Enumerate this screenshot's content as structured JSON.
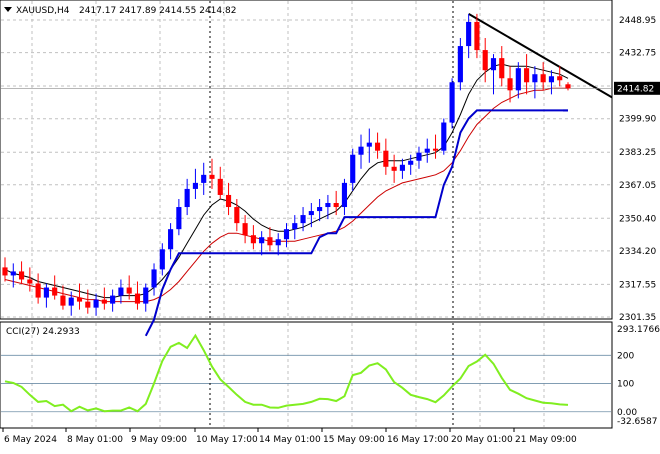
{
  "header": {
    "symbol_line": "XAUUSD,H4",
    "ohlc": "2417.17 2417.89 2414.55 2414.82"
  },
  "current_price": "2414.82",
  "colors": {
    "bull": "#0000ff",
    "bear": "#ff0000",
    "ma_fast": "#000000",
    "ma_slow": "#cc0000",
    "atr_stop": "#0000cc",
    "cci": "#80ee20",
    "grid": "#c0c0c0"
  },
  "price_axis": {
    "labels": [
      "2448.95",
      "2432.75",
      "2416.15",
      "2399.90",
      "2383.25",
      "2367.05",
      "2350.40",
      "2334.20",
      "2317.55",
      "2301.35"
    ],
    "ylim": [
      2301.35,
      2455.0
    ]
  },
  "indicator": {
    "label": "CCI(27) 24.2933",
    "axis_labels": [
      "293.1766",
      "200",
      "100",
      "0.00",
      "-32.6587"
    ],
    "levels": [
      200,
      100,
      0
    ],
    "ylim": [
      -32.6587,
      293.1766
    ]
  },
  "time_axis": {
    "labels": [
      "6 May 2024",
      "8 May 01:00",
      "9 May 09:00",
      "10 May 17:00",
      "14 May 01:00",
      "15 May 09:00",
      "16 May 17:00",
      "20 May 01:00",
      "21 May 09:00"
    ]
  },
  "chart_data": {
    "type": "candlestick",
    "candles": [
      [
        2326,
        2331,
        2319,
        2322
      ],
      [
        2322,
        2328,
        2316,
        2324
      ],
      [
        2324,
        2329,
        2318,
        2320
      ],
      [
        2320,
        2326,
        2314,
        2318
      ],
      [
        2318,
        2323,
        2308,
        2311
      ],
      [
        2311,
        2318,
        2306,
        2316
      ],
      [
        2316,
        2322,
        2310,
        2312
      ],
      [
        2312,
        2317,
        2305,
        2307
      ],
      [
        2307,
        2314,
        2302,
        2311
      ],
      [
        2311,
        2318,
        2305,
        2309
      ],
      [
        2309,
        2315,
        2303,
        2306
      ],
      [
        2306,
        2313,
        2302,
        2310
      ],
      [
        2310,
        2316,
        2305,
        2308
      ],
      [
        2308,
        2315,
        2304,
        2312
      ],
      [
        2312,
        2320,
        2308,
        2316
      ],
      [
        2316,
        2322,
        2310,
        2313
      ],
      [
        2313,
        2319,
        2305,
        2308
      ],
      [
        2308,
        2318,
        2304,
        2316
      ],
      [
        2316,
        2328,
        2312,
        2325
      ],
      [
        2325,
        2338,
        2322,
        2335
      ],
      [
        2335,
        2348,
        2330,
        2345
      ],
      [
        2345,
        2360,
        2342,
        2356
      ],
      [
        2356,
        2370,
        2352,
        2365
      ],
      [
        2365,
        2375,
        2360,
        2368
      ],
      [
        2368,
        2378,
        2362,
        2372
      ],
      [
        2372,
        2380,
        2365,
        2370
      ],
      [
        2370,
        2376,
        2360,
        2362
      ],
      [
        2362,
        2368,
        2352,
        2356
      ],
      [
        2356,
        2360,
        2344,
        2348
      ],
      [
        2348,
        2352,
        2338,
        2342
      ],
      [
        2342,
        2347,
        2335,
        2338
      ],
      [
        2338,
        2344,
        2332,
        2341
      ],
      [
        2341,
        2346,
        2334,
        2337
      ],
      [
        2337,
        2343,
        2332,
        2340
      ],
      [
        2340,
        2348,
        2336,
        2345
      ],
      [
        2345,
        2352,
        2340,
        2348
      ],
      [
        2348,
        2356,
        2344,
        2352
      ],
      [
        2352,
        2358,
        2346,
        2354
      ],
      [
        2354,
        2360,
        2349,
        2356
      ],
      [
        2356,
        2362,
        2350,
        2358
      ],
      [
        2358,
        2364,
        2352,
        2356
      ],
      [
        2356,
        2370,
        2352,
        2368
      ],
      [
        2368,
        2385,
        2364,
        2382
      ],
      [
        2382,
        2392,
        2375,
        2386
      ],
      [
        2386,
        2395,
        2378,
        2388
      ],
      [
        2388,
        2393,
        2380,
        2384
      ],
      [
        2384,
        2390,
        2372,
        2376
      ],
      [
        2376,
        2382,
        2368,
        2374
      ],
      [
        2374,
        2380,
        2370,
        2377
      ],
      [
        2377,
        2382,
        2372,
        2379
      ],
      [
        2379,
        2386,
        2375,
        2383
      ],
      [
        2383,
        2390,
        2378,
        2385
      ],
      [
        2385,
        2392,
        2380,
        2384
      ],
      [
        2384,
        2400,
        2382,
        2398
      ],
      [
        2398,
        2420,
        2395,
        2418
      ],
      [
        2418,
        2440,
        2414,
        2436
      ],
      [
        2436,
        2452,
        2430,
        2448
      ],
      [
        2448,
        2452,
        2430,
        2434
      ],
      [
        2434,
        2440,
        2418,
        2424
      ],
      [
        2424,
        2432,
        2412,
        2430
      ],
      [
        2430,
        2436,
        2416,
        2420
      ],
      [
        2420,
        2426,
        2408,
        2414
      ],
      [
        2414,
        2428,
        2410,
        2425
      ],
      [
        2425,
        2432,
        2412,
        2418
      ],
      [
        2418,
        2426,
        2410,
        2422
      ],
      [
        2422,
        2428,
        2414,
        2418
      ],
      [
        2418,
        2424,
        2412,
        2421
      ],
      [
        2421,
        2426,
        2416,
        2419
      ],
      [
        2417,
        2418,
        2414,
        2415
      ]
    ],
    "ma_fast": [
      2325,
      2323,
      2322,
      2321,
      2319,
      2318,
      2317,
      2316,
      2315,
      2314,
      2313,
      2312,
      2311,
      2311,
      2312,
      2312,
      2312,
      2313,
      2316,
      2320,
      2325,
      2331,
      2338,
      2345,
      2352,
      2357,
      2360,
      2359,
      2357,
      2354,
      2350,
      2347,
      2345,
      2344,
      2344,
      2345,
      2346,
      2348,
      2350,
      2352,
      2354,
      2358,
      2364,
      2370,
      2375,
      2378,
      2379,
      2379,
      2379,
      2380,
      2381,
      2382,
      2383,
      2386,
      2393,
      2402,
      2412,
      2419,
      2423,
      2426,
      2427,
      2426,
      2426,
      2426,
      2425,
      2424,
      2423,
      2422,
      2420
    ],
    "ma_slow": [
      2320,
      2319,
      2318,
      2317,
      2316,
      2315,
      2314,
      2313,
      2312,
      2311,
      2310,
      2310,
      2309,
      2309,
      2309,
      2309,
      2309,
      2309,
      2310,
      2312,
      2315,
      2319,
      2324,
      2329,
      2334,
      2338,
      2341,
      2343,
      2343,
      2342,
      2341,
      2340,
      2339,
      2339,
      2339,
      2339,
      2340,
      2341,
      2342,
      2343,
      2344,
      2346,
      2349,
      2353,
      2357,
      2361,
      2364,
      2366,
      2368,
      2369,
      2370,
      2371,
      2372,
      2374,
      2378,
      2384,
      2391,
      2397,
      2401,
      2405,
      2408,
      2410,
      2412,
      2413,
      2414,
      2414,
      2415,
      2415,
      2415
    ],
    "atr_stop": [
      null,
      null,
      null,
      null,
      null,
      null,
      null,
      null,
      null,
      null,
      null,
      null,
      null,
      null,
      null,
      null,
      null,
      2292,
      2300,
      2315,
      2325,
      2333,
      2333,
      2333,
      2333,
      2333,
      2333,
      2333,
      2333,
      2333,
      2333,
      2333,
      2333,
      2333,
      2333,
      2333,
      2333,
      2333,
      2341,
      2343,
      2343,
      2351,
      2351,
      2351,
      2351,
      2351,
      2351,
      2351,
      2351,
      2351,
      2351,
      2351,
      2351,
      2367,
      2376,
      2393,
      2400,
      2404,
      2404,
      2404,
      2404,
      2404,
      2404,
      2404,
      2404,
      2404,
      2404,
      2404,
      2404
    ],
    "trendline": [
      [
        56,
        2452
      ],
      [
        68,
        2412
      ]
    ],
    "cci": [
      108,
      102,
      88,
      60,
      35,
      38,
      20,
      25,
      2,
      18,
      5,
      12,
      2,
      4,
      4,
      15,
      2,
      28,
      100,
      180,
      230,
      244,
      226,
      270,
      218,
      160,
      115,
      88,
      60,
      35,
      25,
      25,
      15,
      14,
      22,
      25,
      28,
      35,
      46,
      45,
      38,
      55,
      130,
      138,
      164,
      172,
      150,
      105,
      85,
      60,
      52,
      45,
      34,
      58,
      90,
      118,
      162,
      178,
      202,
      170,
      120,
      78,
      64,
      48,
      40,
      32,
      30,
      26,
      24.29
    ]
  }
}
